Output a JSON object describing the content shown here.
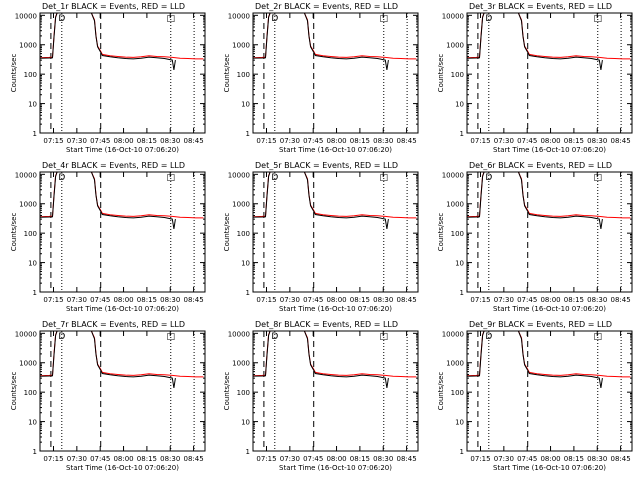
{
  "panels": [
    {
      "title": "Det_1r BLACK = Events, RED = LLD"
    },
    {
      "title": "Det_2r BLACK = Events, RED = LLD"
    },
    {
      "title": "Det_3r BLACK = Events, RED = LLD"
    },
    {
      "title": "Det_4r BLACK = Events, RED = LLD"
    },
    {
      "title": "Det_5r BLACK = Events, RED = LLD"
    },
    {
      "title": "Det_6r BLACK = Events, RED = LLD"
    },
    {
      "title": "Det_7r BLACK = Events, RED = LLD"
    },
    {
      "title": "Det_8r BLACK = Events, RED = LLD"
    },
    {
      "title": "Det_9r BLACK = Events, RED = LLD"
    }
  ],
  "colors": {
    "events": "#000000",
    "lld": "#ff0000",
    "axis": "#000000"
  },
  "chart_data": {
    "type": "line",
    "layout": "3x3 small multiples",
    "xlabel": "Start Time (16-Oct-10 07:06:20)",
    "ylabel": "Counts/sec",
    "yscale": "log",
    "ylim": [
      1,
      12000
    ],
    "x_tick_labels": [
      "07:15",
      "07:30",
      "07:45",
      "08:00",
      "08:15",
      "08:30",
      "08:45"
    ],
    "y_tick_labels": [
      "1",
      "10",
      "100",
      "1000",
      "10000"
    ],
    "y_tick_values": [
      1,
      10,
      100,
      1000,
      10000
    ],
    "xlim_minutes": [
      0,
      106
    ],
    "vlines_dashed_minutes": [
      7,
      39
    ],
    "vlines_dotted_minutes": [
      14,
      84,
      99
    ],
    "markers": [
      {
        "minute": 14,
        "label": "D"
      },
      {
        "minute": 84,
        "label": "□"
      }
    ],
    "series": [
      {
        "name": "LLD",
        "color": "#ff0000",
        "points": [
          [
            0,
            360
          ],
          [
            6,
            370
          ],
          [
            8,
            380
          ],
          [
            9,
            2000
          ],
          [
            10,
            9000
          ],
          [
            11,
            12000
          ],
          [
            33,
            12000
          ],
          [
            35,
            7000
          ],
          [
            36,
            2000
          ],
          [
            37,
            900
          ],
          [
            39,
            600
          ],
          [
            40,
            470
          ],
          [
            45,
            420
          ],
          [
            50,
            400
          ],
          [
            55,
            380
          ],
          [
            60,
            370
          ],
          [
            65,
            390
          ],
          [
            70,
            420
          ],
          [
            75,
            400
          ],
          [
            80,
            390
          ],
          [
            85,
            370
          ],
          [
            90,
            350
          ],
          [
            95,
            340
          ],
          [
            100,
            330
          ],
          [
            105,
            330
          ]
        ]
      },
      {
        "name": "Events",
        "color": "#000000",
        "points": [
          [
            0,
            350
          ],
          [
            6,
            355
          ],
          [
            8,
            360
          ],
          [
            9,
            1800
          ],
          [
            10,
            8500
          ],
          [
            11,
            12000
          ],
          [
            33,
            12000
          ],
          [
            35,
            6500
          ],
          [
            36,
            1900
          ],
          [
            37,
            850
          ],
          [
            39,
            560
          ],
          [
            40,
            430
          ],
          [
            45,
            390
          ],
          [
            50,
            360
          ],
          [
            55,
            340
          ],
          [
            60,
            330
          ],
          [
            65,
            350
          ],
          [
            70,
            380
          ],
          [
            75,
            360
          ],
          [
            80,
            340
          ],
          [
            85,
            300
          ],
          [
            86,
            140
          ],
          [
            87,
            300
          ]
        ]
      }
    ]
  }
}
